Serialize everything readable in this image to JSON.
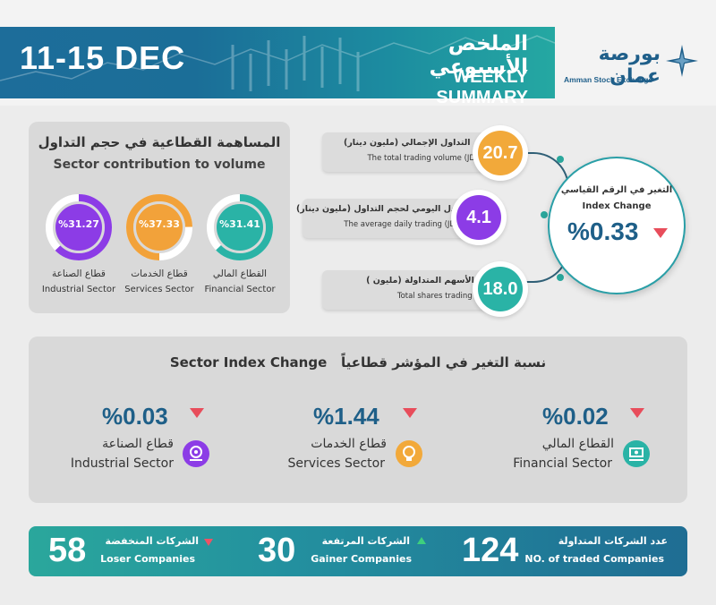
{
  "header": {
    "date": "11-15 DEC",
    "title_ar": "الملخص الأسبوعي",
    "title_en": "WEEKLY SUMMARY",
    "logo_ar": "بورصة عمان",
    "logo_en": "Amman Stock Exchange"
  },
  "contribution": {
    "title_ar": "المساهمة القطاعية في حجم التداول",
    "title_en": "Sector contribution to volume",
    "sectors": [
      {
        "value": "%31.27",
        "pct": 31.27,
        "label_ar": "قطاع الصناعة",
        "label_en": "Industrial Sector",
        "color": "#8c3ce6"
      },
      {
        "value": "%37.33",
        "pct": 37.33,
        "label_ar": "قطاع الخدمات",
        "label_en": "Services Sector",
        "color": "#f2a23a"
      },
      {
        "value": "%31.41",
        "pct": 31.41,
        "label_ar": "القطاع المالي",
        "label_en": "Financial Sector",
        "color": "#2ab3a6"
      }
    ]
  },
  "stats": {
    "volume": {
      "label_ar": "حجم التداول الإجمالي (مليون دينار)",
      "label_en": "The total trading volume (JD mil)",
      "value": "20.7",
      "color": "#f2a93a"
    },
    "daily": {
      "label_ar": "المعدل اليومي لحجم التداول (مليون دينار)",
      "label_en": "The average daily trading (JD mil)",
      "value": "4.1",
      "color": "#8c3ce6"
    },
    "shares": {
      "label_ar": "عدد الأسهم المتداولة (مليون )",
      "label_en": "Total shares trading (mil)",
      "value": "18.0",
      "color": "#2ab3a6"
    }
  },
  "index_change": {
    "label_ar": "التغير في الرقم القياسي",
    "label_en": "Index Change",
    "value": "%0.33",
    "direction": "down"
  },
  "sector_index": {
    "title_en": "Sector Index Change",
    "title_ar": "نسبة التغير في المؤشر قطاعياً",
    "items": [
      {
        "value": "%0.03",
        "label_ar": "قطاع الصناعة",
        "label_en": "Industrial Sector",
        "direction": "down",
        "icon": "gear-hand-icon",
        "color": "#8c3ce6"
      },
      {
        "value": "%1.44",
        "label_ar": "قطاع الخدمات",
        "label_en": "Services Sector",
        "direction": "down",
        "icon": "lightbulb-icon",
        "color": "#f2a93a"
      },
      {
        "value": "%0.02",
        "label_ar": "القطاع المالي",
        "label_en": "Financial Sector",
        "direction": "down",
        "icon": "money-hand-icon",
        "color": "#2ab3a6"
      }
    ]
  },
  "footer": {
    "losers": {
      "value": "58",
      "label_ar": "الشركات المنخفضة",
      "label_en": "Loser Companies"
    },
    "gainers": {
      "value": "30",
      "label_ar": "الشركات المرتفعة",
      "label_en": "Gainer Companies"
    },
    "traded": {
      "value": "124",
      "label_ar": "عدد الشركات المتداولة",
      "label_en": "NO. of traded Companies"
    }
  }
}
